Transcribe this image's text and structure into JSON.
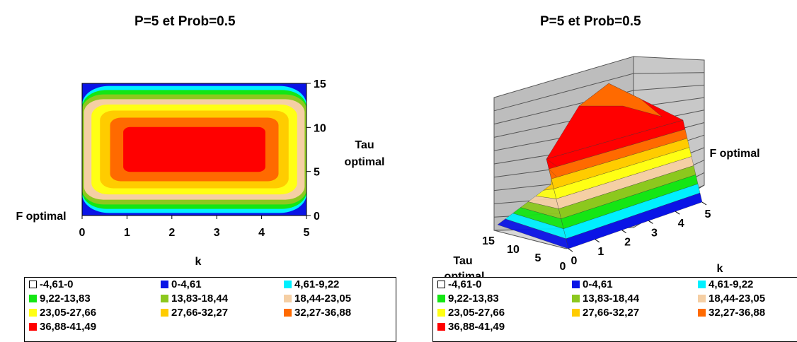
{
  "chart_data": [
    {
      "type": "contour",
      "title": "P=5 et Prob=0.5",
      "xlabel": "k",
      "ylabel": "Tau optimal",
      "zlabel": "F optimal",
      "x_ticks": [
        "0",
        "1",
        "2",
        "3",
        "4",
        "5"
      ],
      "y_ticks": [
        "0",
        "5",
        "10",
        "15"
      ],
      "xlim": [
        0,
        5
      ],
      "ylim": [
        0,
        15
      ],
      "z_peak": 41.0,
      "z_peak_position": {
        "k": 2.5,
        "tau": 7.5
      }
    },
    {
      "type": "surface",
      "title": "P=5 et Prob=0.5",
      "xlabel": "k",
      "ylabel": "Tau optimal",
      "zlabel": "F optimal",
      "x_ticks": [
        "0",
        "1",
        "2",
        "3",
        "4",
        "5"
      ],
      "y_ticks": [
        "0",
        "5",
        "10",
        "15"
      ],
      "xlim": [
        0,
        5
      ],
      "ylim": [
        0,
        15
      ]
    }
  ],
  "legend": {
    "bands": [
      {
        "label": "-4,61-0",
        "color": "#ffffff"
      },
      {
        "label": "0-4,61",
        "color": "#0a14e6"
      },
      {
        "label": "4,61-9,22",
        "color": "#00f0ff"
      },
      {
        "label": "9,22-13,83",
        "color": "#14e614"
      },
      {
        "label": "13,83-18,44",
        "color": "#8cc81e"
      },
      {
        "label": "18,44-23,05",
        "color": "#f5cfa4"
      },
      {
        "label": "23,05-27,66",
        "color": "#ffff14"
      },
      {
        "label": "27,66-32,27",
        "color": "#ffcc00"
      },
      {
        "label": "32,27-36,88",
        "color": "#ff6a00"
      },
      {
        "label": "36,88-41,49",
        "color": "#ff0000"
      }
    ]
  }
}
